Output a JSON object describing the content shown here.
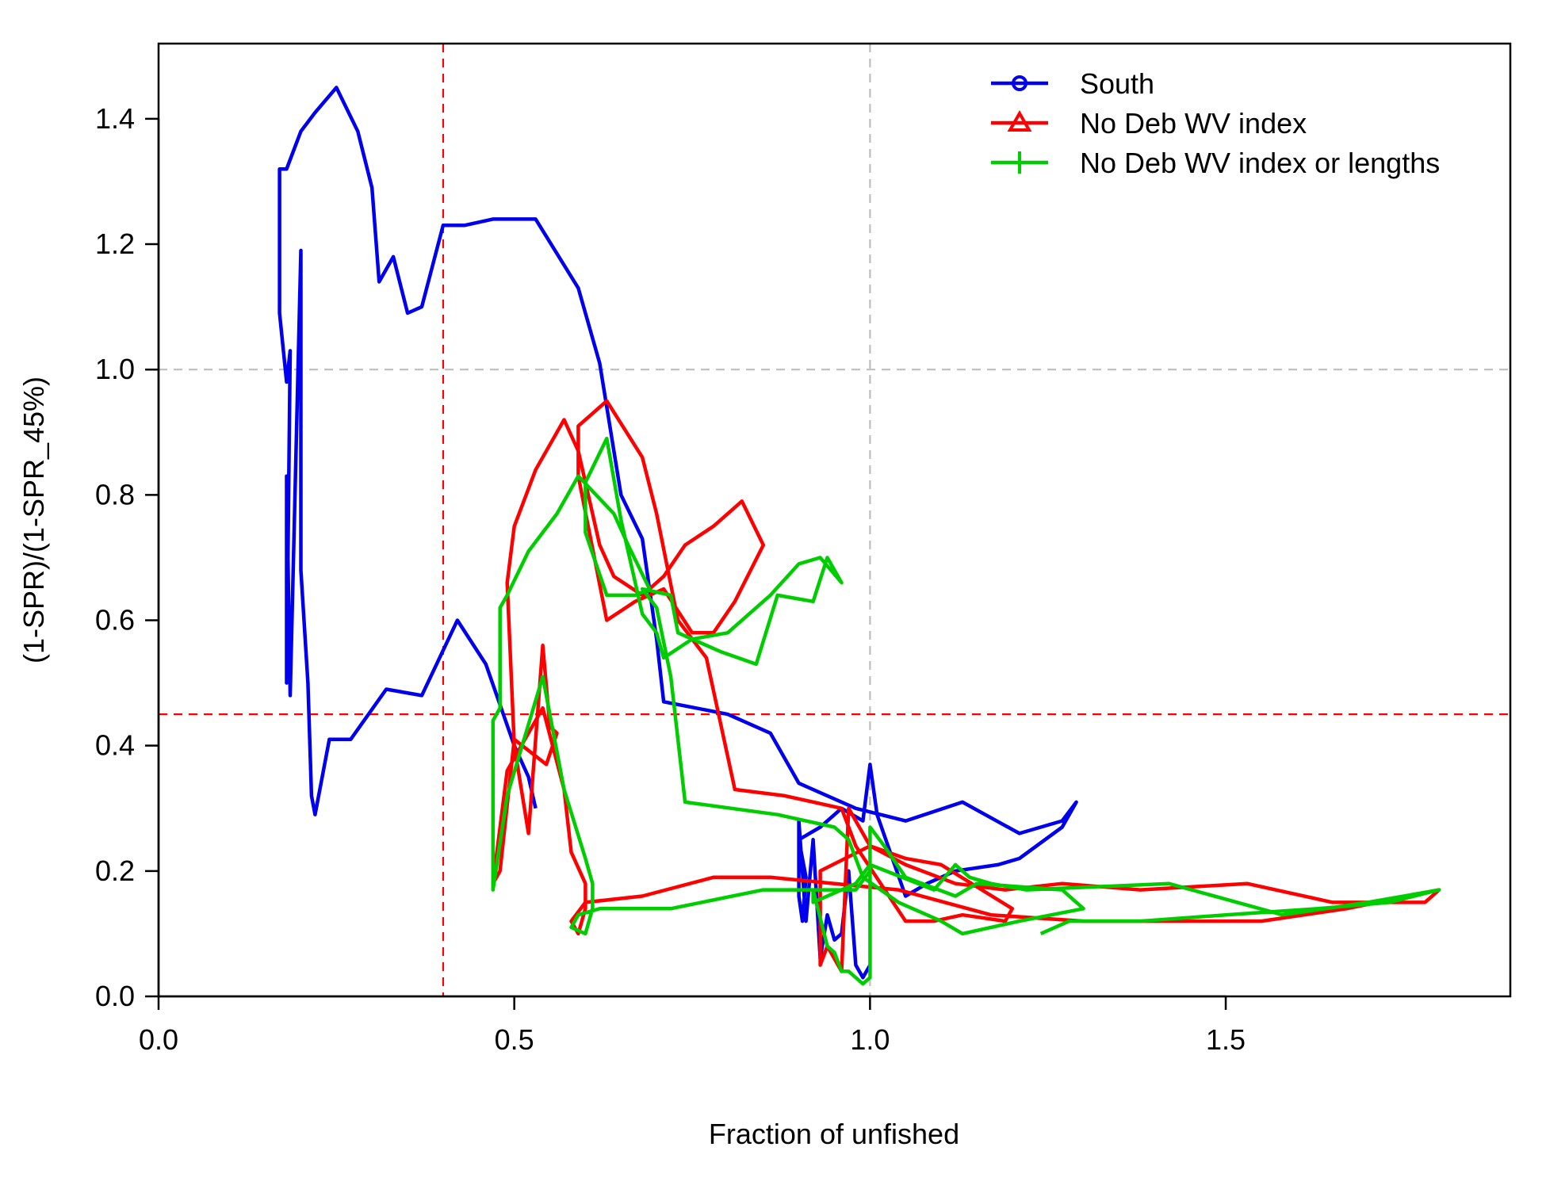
{
  "chart_data": {
    "type": "line",
    "title": "",
    "xlabel": "Fraction of unfished",
    "ylabel": "(1-SPR)/(1-SPR_45%)",
    "xlim": [
      0,
      1.9
    ],
    "ylim": [
      0,
      1.52
    ],
    "x_ticks": [
      0,
      0.5,
      1,
      1.5
    ],
    "x_tick_labels": [
      "0.0",
      "0.5",
      "1.0",
      "1.5"
    ],
    "y_ticks": [
      0,
      0.2,
      0.4,
      0.6,
      0.8,
      1,
      1.2,
      1.4
    ],
    "y_tick_labels": [
      "0.0",
      "0.2",
      "0.4",
      "0.6",
      "0.8",
      "1.0",
      "1.2",
      "1.4"
    ],
    "grid": false,
    "legend_position": "top-right",
    "reference_lines": [
      {
        "axis": "x",
        "value": 0.4,
        "color": "#ff0000",
        "style": "dashed"
      },
      {
        "axis": "x",
        "value": 1.0,
        "color": "#bebebe",
        "style": "dashed"
      },
      {
        "axis": "y",
        "value": 0.45,
        "color": "#ff0000",
        "style": "dashed"
      },
      {
        "axis": "y",
        "value": 1.0,
        "color": "#bebebe",
        "style": "dashed"
      }
    ],
    "series": [
      {
        "name": "South",
        "color": "#0000ee",
        "marker": "circle",
        "points": [
          [
            1.0,
            0.05
          ],
          [
            0.99,
            0.03
          ],
          [
            0.98,
            0.05
          ],
          [
            0.97,
            0.2
          ],
          [
            0.96,
            0.1
          ],
          [
            0.95,
            0.09
          ],
          [
            0.94,
            0.13
          ],
          [
            0.93,
            0.06
          ],
          [
            0.92,
            0.25
          ],
          [
            0.91,
            0.12
          ],
          [
            0.9,
            0.28
          ],
          [
            0.9,
            0.16
          ],
          [
            0.905,
            0.12
          ],
          [
            0.91,
            0.19
          ],
          [
            0.9,
            0.25
          ],
          [
            0.93,
            0.27
          ],
          [
            0.96,
            0.3
          ],
          [
            0.99,
            0.28
          ],
          [
            1.0,
            0.37
          ],
          [
            1.01,
            0.29
          ],
          [
            1.05,
            0.16
          ],
          [
            1.08,
            0.18
          ],
          [
            1.12,
            0.2
          ],
          [
            1.18,
            0.21
          ],
          [
            1.21,
            0.22
          ],
          [
            1.27,
            0.27
          ],
          [
            1.29,
            0.31
          ],
          [
            1.27,
            0.28
          ],
          [
            1.21,
            0.26
          ],
          [
            1.13,
            0.31
          ],
          [
            1.05,
            0.28
          ],
          [
            0.98,
            0.3
          ],
          [
            0.9,
            0.34
          ],
          [
            0.86,
            0.42
          ],
          [
            0.8,
            0.45
          ],
          [
            0.71,
            0.47
          ],
          [
            0.7,
            0.57
          ],
          [
            0.68,
            0.73
          ],
          [
            0.65,
            0.8
          ],
          [
            0.62,
            1.01
          ],
          [
            0.59,
            1.13
          ],
          [
            0.53,
            1.24
          ],
          [
            0.47,
            1.24
          ],
          [
            0.43,
            1.23
          ],
          [
            0.4,
            1.23
          ],
          [
            0.37,
            1.1
          ],
          [
            0.35,
            1.09
          ],
          [
            0.33,
            1.18
          ],
          [
            0.31,
            1.14
          ],
          [
            0.3,
            1.29
          ],
          [
            0.28,
            1.38
          ],
          [
            0.25,
            1.45
          ],
          [
            0.22,
            1.41
          ],
          [
            0.2,
            1.38
          ],
          [
            0.18,
            1.32
          ],
          [
            0.17,
            1.32
          ],
          [
            0.17,
            1.09
          ],
          [
            0.18,
            0.98
          ],
          [
            0.185,
            1.03
          ],
          [
            0.18,
            0.5
          ],
          [
            0.18,
            0.83
          ],
          [
            0.185,
            0.48
          ],
          [
            0.2,
            1.19
          ],
          [
            0.2,
            0.68
          ],
          [
            0.21,
            0.5
          ],
          [
            0.215,
            0.32
          ],
          [
            0.22,
            0.29
          ],
          [
            0.24,
            0.41
          ],
          [
            0.27,
            0.41
          ],
          [
            0.32,
            0.49
          ],
          [
            0.37,
            0.48
          ],
          [
            0.42,
            0.6
          ],
          [
            0.46,
            0.53
          ],
          [
            0.5,
            0.4
          ],
          [
            0.52,
            0.35
          ],
          [
            0.53,
            0.3
          ]
        ]
      },
      {
        "name": "No Deb WV index",
        "color": "#ff0000",
        "marker": "triangle",
        "points": [
          [
            1.8,
            0.17
          ],
          [
            1.78,
            0.15
          ],
          [
            1.65,
            0.15
          ],
          [
            1.53,
            0.18
          ],
          [
            1.38,
            0.17
          ],
          [
            1.27,
            0.18
          ],
          [
            1.19,
            0.17
          ],
          [
            1.12,
            0.18
          ],
          [
            1.05,
            0.21
          ],
          [
            1.0,
            0.24
          ],
          [
            0.93,
            0.2
          ],
          [
            0.93,
            0.05
          ],
          [
            0.94,
            0.08
          ],
          [
            0.96,
            0.04
          ],
          [
            0.97,
            0.3
          ],
          [
            0.98,
            0.28
          ],
          [
            1.0,
            0.24
          ],
          [
            1.05,
            0.22
          ],
          [
            1.1,
            0.21
          ],
          [
            1.2,
            0.14
          ],
          [
            1.19,
            0.12
          ],
          [
            1.13,
            0.13
          ],
          [
            1.09,
            0.12
          ],
          [
            1.05,
            0.12
          ],
          [
            0.98,
            0.24
          ],
          [
            0.96,
            0.3
          ],
          [
            0.88,
            0.32
          ],
          [
            0.81,
            0.33
          ],
          [
            0.77,
            0.54
          ],
          [
            0.73,
            0.6
          ],
          [
            0.7,
            0.77
          ],
          [
            0.68,
            0.86
          ],
          [
            0.63,
            0.95
          ],
          [
            0.59,
            0.91
          ],
          [
            0.59,
            0.83
          ],
          [
            0.63,
            0.6
          ],
          [
            0.67,
            0.63
          ],
          [
            0.71,
            0.65
          ],
          [
            0.75,
            0.58
          ],
          [
            0.78,
            0.58
          ],
          [
            0.81,
            0.63
          ],
          [
            0.85,
            0.72
          ],
          [
            0.82,
            0.79
          ],
          [
            0.78,
            0.75
          ],
          [
            0.74,
            0.72
          ],
          [
            0.71,
            0.67
          ],
          [
            0.68,
            0.64
          ],
          [
            0.64,
            0.67
          ],
          [
            0.62,
            0.72
          ],
          [
            0.59,
            0.87
          ],
          [
            0.57,
            0.92
          ],
          [
            0.53,
            0.84
          ],
          [
            0.5,
            0.75
          ],
          [
            0.49,
            0.66
          ],
          [
            0.5,
            0.4
          ],
          [
            0.52,
            0.26
          ],
          [
            0.54,
            0.56
          ],
          [
            0.55,
            0.43
          ],
          [
            0.56,
            0.42
          ],
          [
            0.545,
            0.37
          ],
          [
            0.5,
            0.41
          ],
          [
            0.48,
            0.2
          ],
          [
            0.47,
            0.18
          ],
          [
            0.49,
            0.36
          ],
          [
            0.54,
            0.46
          ],
          [
            0.57,
            0.33
          ],
          [
            0.58,
            0.23
          ],
          [
            0.6,
            0.18
          ],
          [
            0.6,
            0.14
          ],
          [
            0.59,
            0.1
          ],
          [
            0.58,
            0.12
          ],
          [
            0.6,
            0.15
          ],
          [
            0.68,
            0.16
          ],
          [
            0.78,
            0.19
          ],
          [
            0.86,
            0.19
          ],
          [
            0.95,
            0.18
          ],
          [
            1.04,
            0.17
          ],
          [
            1.17,
            0.13
          ],
          [
            1.3,
            0.12
          ],
          [
            1.55,
            0.12
          ],
          [
            1.67,
            0.14
          ],
          [
            1.8,
            0.17
          ]
        ]
      },
      {
        "name": "No Deb WV index or lengths",
        "color": "#00cd00",
        "marker": "plus",
        "points": [
          [
            1.24,
            0.1
          ],
          [
            1.28,
            0.12
          ],
          [
            1.31,
            0.12
          ],
          [
            1.38,
            0.12
          ],
          [
            1.5,
            0.13
          ],
          [
            1.63,
            0.14
          ],
          [
            1.73,
            0.15
          ],
          [
            1.8,
            0.17
          ],
          [
            1.7,
            0.15
          ],
          [
            1.58,
            0.13
          ],
          [
            1.42,
            0.18
          ],
          [
            1.22,
            0.17
          ],
          [
            1.17,
            0.18
          ],
          [
            1.14,
            0.19
          ],
          [
            1.12,
            0.21
          ],
          [
            1.09,
            0.17
          ],
          [
            1.0,
            0.21
          ],
          [
            0.98,
            0.18
          ],
          [
            0.96,
            0.17
          ],
          [
            0.92,
            0.15
          ],
          [
            0.92,
            0.17
          ],
          [
            0.94,
            0.08
          ],
          [
            0.95,
            0.07
          ],
          [
            0.96,
            0.04
          ],
          [
            0.97,
            0.04
          ],
          [
            0.99,
            0.02
          ],
          [
            1.0,
            0.03
          ],
          [
            1.0,
            0.27
          ],
          [
            1.02,
            0.24
          ],
          [
            1.05,
            0.19
          ],
          [
            1.12,
            0.16
          ],
          [
            1.15,
            0.18
          ],
          [
            1.27,
            0.17
          ],
          [
            1.3,
            0.14
          ],
          [
            1.21,
            0.12
          ],
          [
            1.13,
            0.1
          ],
          [
            1.1,
            0.12
          ],
          [
            1.04,
            0.15
          ],
          [
            0.99,
            0.19
          ],
          [
            0.97,
            0.25
          ],
          [
            0.95,
            0.27
          ],
          [
            0.87,
            0.29
          ],
          [
            0.74,
            0.31
          ],
          [
            0.72,
            0.51
          ],
          [
            0.7,
            0.62
          ],
          [
            0.68,
            0.65
          ],
          [
            0.72,
            0.64
          ],
          [
            0.73,
            0.58
          ],
          [
            0.77,
            0.56
          ],
          [
            0.79,
            0.55
          ],
          [
            0.84,
            0.53
          ],
          [
            0.87,
            0.64
          ],
          [
            0.92,
            0.63
          ],
          [
            0.94,
            0.7
          ],
          [
            0.96,
            0.66
          ],
          [
            0.93,
            0.7
          ],
          [
            0.9,
            0.69
          ],
          [
            0.86,
            0.64
          ],
          [
            0.8,
            0.58
          ],
          [
            0.75,
            0.57
          ],
          [
            0.71,
            0.54
          ],
          [
            0.7,
            0.58
          ],
          [
            0.68,
            0.61
          ],
          [
            0.65,
            0.76
          ],
          [
            0.63,
            0.89
          ],
          [
            0.6,
            0.82
          ],
          [
            0.6,
            0.74
          ],
          [
            0.63,
            0.64
          ],
          [
            0.67,
            0.64
          ],
          [
            0.69,
            0.65
          ],
          [
            0.66,
            0.72
          ],
          [
            0.64,
            0.77
          ],
          [
            0.59,
            0.83
          ],
          [
            0.56,
            0.77
          ],
          [
            0.52,
            0.71
          ],
          [
            0.49,
            0.64
          ],
          [
            0.48,
            0.62
          ],
          [
            0.48,
            0.46
          ],
          [
            0.47,
            0.44
          ],
          [
            0.47,
            0.17
          ],
          [
            0.49,
            0.32
          ],
          [
            0.54,
            0.51
          ],
          [
            0.57,
            0.33
          ],
          [
            0.6,
            0.22
          ],
          [
            0.61,
            0.18
          ],
          [
            0.61,
            0.14
          ],
          [
            0.6,
            0.1
          ],
          [
            0.58,
            0.11
          ],
          [
            0.59,
            0.13
          ],
          [
            0.62,
            0.14
          ],
          [
            0.72,
            0.14
          ],
          [
            0.85,
            0.17
          ],
          [
            0.98,
            0.17
          ],
          [
            1.0,
            0.2
          ]
        ]
      }
    ]
  }
}
